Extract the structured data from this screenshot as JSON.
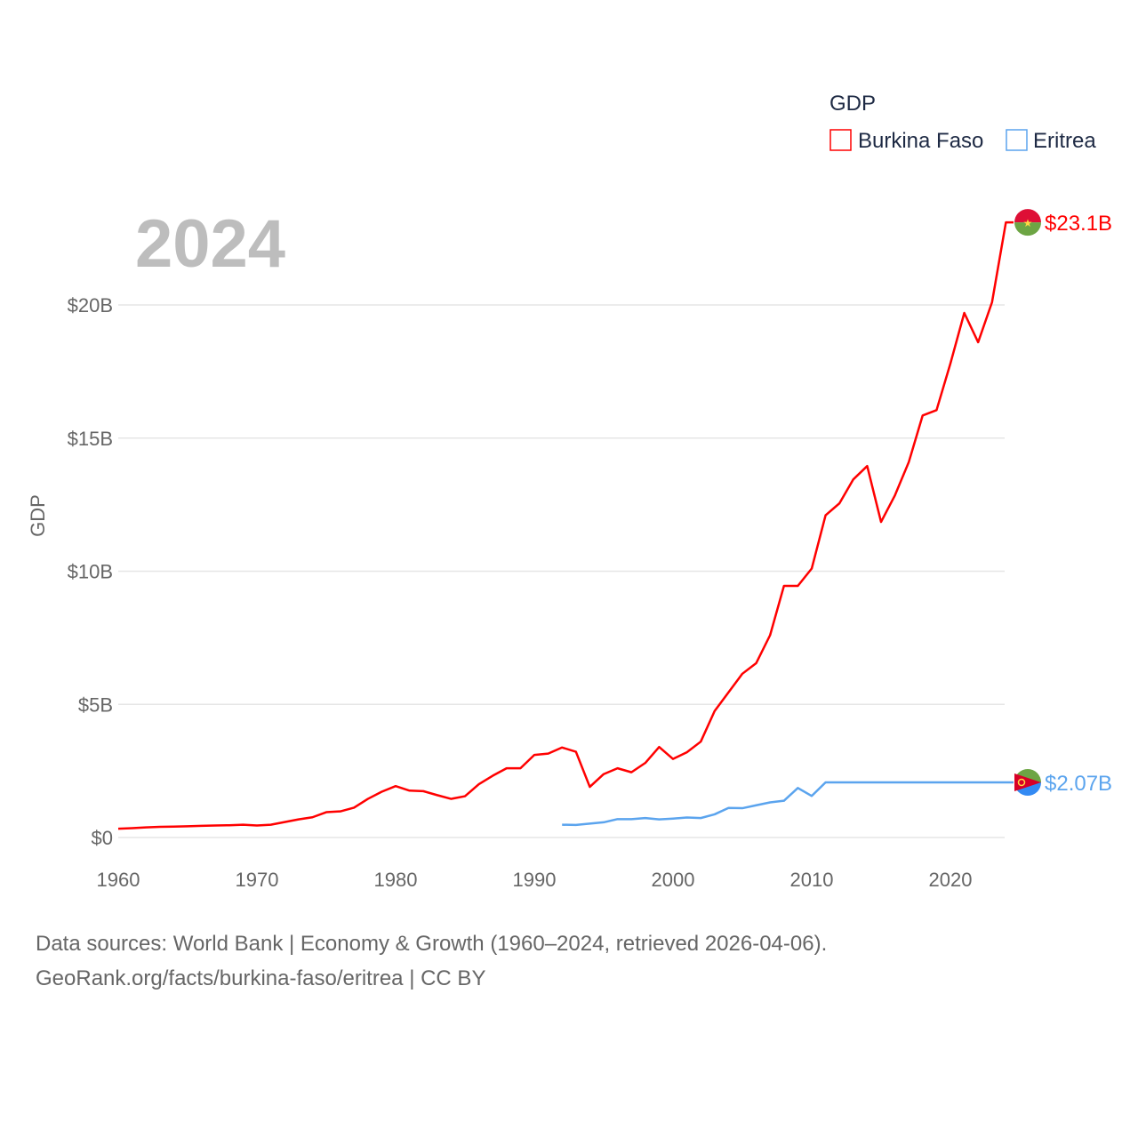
{
  "chart_data": {
    "type": "line",
    "title": "GDP",
    "year_label": "2024",
    "ylabel": "GDP",
    "xlabel": "",
    "xlim": [
      1960,
      2024
    ],
    "ylim": [
      0,
      23.1
    ],
    "x_ticks": [
      "1960",
      "1970",
      "1980",
      "1990",
      "2000",
      "2010",
      "2020"
    ],
    "x_tick_values": [
      1960,
      1970,
      1980,
      1990,
      2000,
      2010,
      2020
    ],
    "y_ticks": [
      "$0",
      "$5B",
      "$10B",
      "$15B",
      "$20B"
    ],
    "y_tick_values": [
      0,
      5,
      10,
      15,
      20
    ],
    "grid": true,
    "legend_position": "top-right",
    "series": [
      {
        "name": "Burkina Faso",
        "color": "#ff0000",
        "end_label": "$23.1B",
        "start_year": 1960,
        "values": [
          0.33,
          0.35,
          0.38,
          0.4,
          0.41,
          0.42,
          0.44,
          0.45,
          0.46,
          0.48,
          0.45,
          0.48,
          0.58,
          0.68,
          0.76,
          0.95,
          0.98,
          1.12,
          1.45,
          1.72,
          1.93,
          1.76,
          1.74,
          1.59,
          1.45,
          1.55,
          2.0,
          2.32,
          2.6,
          2.6,
          3.1,
          3.15,
          3.38,
          3.22,
          1.9,
          2.38,
          2.6,
          2.45,
          2.8,
          3.4,
          2.95,
          3.2,
          3.6,
          4.75,
          5.45,
          6.15,
          6.55,
          7.6,
          9.45,
          9.45,
          10.1,
          12.1,
          12.55,
          13.45,
          13.95,
          11.85,
          12.85,
          14.1,
          15.85,
          16.05,
          17.8,
          19.7,
          18.6,
          20.1,
          23.1
        ]
      },
      {
        "name": "Eritrea",
        "color": "#5ba4ee",
        "end_label": "$2.07B",
        "start_year": 1992,
        "values": [
          0.48,
          0.47,
          0.52,
          0.57,
          0.69,
          0.69,
          0.73,
          0.68,
          0.71,
          0.75,
          0.73,
          0.87,
          1.11,
          1.1,
          1.21,
          1.32,
          1.38,
          1.86,
          1.56,
          2.07,
          2.07,
          2.07,
          2.07,
          2.07,
          2.07,
          2.07,
          2.07,
          2.07,
          2.07,
          2.07,
          2.07,
          2.07,
          2.07
        ]
      }
    ],
    "source_line1": "Data sources: World Bank | Economy & Growth (1960–2024, retrieved 2026-04-06).",
    "source_line2": "GeoRank.org/facts/burkina-faso/eritrea | CC BY"
  }
}
